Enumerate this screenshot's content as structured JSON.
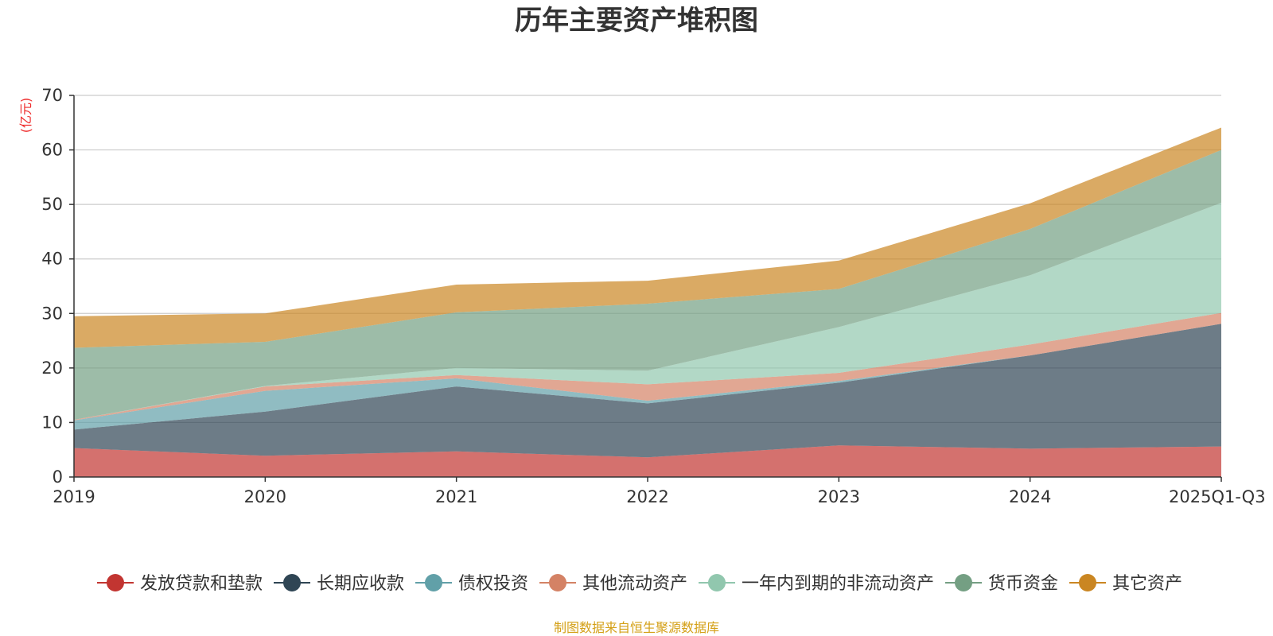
{
  "chart_data": {
    "type": "area",
    "stacked": true,
    "title": "历年主要资产堆积图",
    "unit_label": "(亿元)",
    "xlabel": "",
    "ylabel": "(亿元)",
    "ylim": [
      0,
      70
    ],
    "yticks": [
      "0",
      "10",
      "20",
      "30",
      "40",
      "50",
      "60",
      "70"
    ],
    "categories": [
      "2019",
      "2020",
      "2021",
      "2022",
      "2023",
      "2024",
      "2025Q1-Q3"
    ],
    "grid": true,
    "legend_position": "bottom",
    "series": [
      {
        "name": "发放贷款和垫款",
        "color": "#c23531",
        "values": [
          5.3,
          3.9,
          4.7,
          3.6,
          5.8,
          5.2,
          5.6
        ]
      },
      {
        "name": "长期应收款",
        "color": "#2f4554",
        "values": [
          3.4,
          8.1,
          11.9,
          9.9,
          11.5,
          17.1,
          22.5
        ]
      },
      {
        "name": "债权投资",
        "color": "#61a0a8",
        "values": [
          1.7,
          3.8,
          1.5,
          0.5,
          0.3,
          0.0,
          0.0
        ]
      },
      {
        "name": "其他流动资产",
        "color": "#d48265",
        "values": [
          0.1,
          0.8,
          0.6,
          3.0,
          1.5,
          2.0,
          2.0
        ]
      },
      {
        "name": "一年内到期的非流动资产",
        "color": "#91c7ae",
        "values": [
          0.0,
          0.1,
          1.3,
          2.5,
          8.4,
          12.7,
          20.2
        ]
      },
      {
        "name": "货币资金",
        "color": "#749f83",
        "values": [
          13.2,
          8.1,
          10.2,
          12.3,
          7.0,
          8.5,
          9.7
        ]
      },
      {
        "name": "其它资产",
        "color": "#ca8622",
        "values": [
          5.8,
          5.2,
          5.1,
          4.2,
          5.2,
          4.7,
          4.1
        ]
      }
    ]
  },
  "footer": {
    "source": "制图数据来自恒生聚源数据库"
  }
}
